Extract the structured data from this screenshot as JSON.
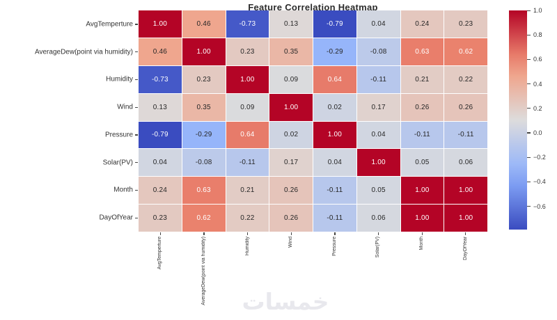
{
  "watermark": "خمسات",
  "colors": {
    "background": "#ffffff",
    "title_color": "#2b2b2b",
    "label_color": "#333333",
    "tick_color": "#444444",
    "annot_dark": "#262626",
    "annot_light": "#ffffff",
    "gridline_color": "#ffffff",
    "watermark_color": "#e8e8ed",
    "coolwarm_stops": [
      "#3a4cc0",
      "#8db0fe",
      "#dddcdc",
      "#f4987a",
      "#b40426"
    ]
  },
  "chart_data": {
    "type": "heatmap",
    "title": "Feature Correlation Heatmap",
    "colormap": "coolwarm",
    "vmin": -0.79,
    "vmax": 1.0,
    "annotations": true,
    "value_format": "0.00",
    "legend_position": "right-colorbar",
    "labels": [
      "AvgTemperture",
      "AverageDew(point via humidity)",
      "Humidity",
      "Wind",
      "Pressure",
      "Solar(PV)",
      "Month",
      "DayOfYear"
    ],
    "matrix": [
      [
        1.0,
        0.46,
        -0.73,
        0.13,
        -0.79,
        0.04,
        0.24,
        0.23
      ],
      [
        0.46,
        1.0,
        0.23,
        0.35,
        -0.29,
        -0.08,
        0.63,
        0.62
      ],
      [
        -0.73,
        0.23,
        1.0,
        0.09,
        0.64,
        -0.11,
        0.21,
        0.22
      ],
      [
        0.13,
        0.35,
        0.09,
        1.0,
        0.02,
        0.17,
        0.26,
        0.26
      ],
      [
        -0.79,
        -0.29,
        0.64,
        0.02,
        1.0,
        0.04,
        -0.11,
        -0.11
      ],
      [
        0.04,
        -0.08,
        -0.11,
        0.17,
        0.04,
        1.0,
        0.05,
        0.06
      ],
      [
        0.24,
        0.63,
        0.21,
        0.26,
        -0.11,
        0.05,
        1.0,
        1.0
      ],
      [
        0.23,
        0.62,
        0.22,
        0.26,
        -0.11,
        0.06,
        1.0,
        1.0
      ]
    ],
    "colorbar_ticks": [
      1.0,
      0.8,
      0.6,
      0.4,
      0.2,
      0.0,
      -0.2,
      -0.4,
      -0.6
    ],
    "colorbar_tick_labels": [
      "1.0",
      "0.8",
      "0.6",
      "0.4",
      "0.2",
      "0.0",
      "−0.2",
      "−0.4",
      "−0.6"
    ]
  }
}
